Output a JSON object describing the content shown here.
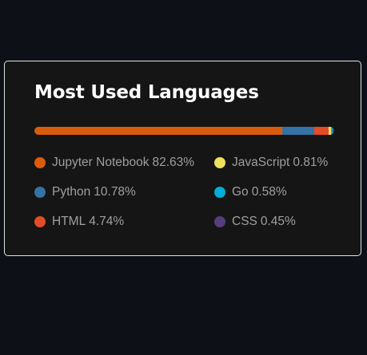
{
  "card": {
    "title": "Most Used Languages",
    "border_color": "#e4e2e2",
    "background": "#151515",
    "title_color": "#ffffff",
    "text_color": "#9f9f9f"
  },
  "page_background": "#0d1117",
  "languages": [
    {
      "name": "Jupyter Notebook",
      "percent_label": "82.63%",
      "percent": 82.63,
      "color": "#DA5B0B"
    },
    {
      "name": "Python",
      "percent_label": "10.78%",
      "percent": 10.78,
      "color": "#3572A5"
    },
    {
      "name": "HTML",
      "percent_label": "4.74%",
      "percent": 4.74,
      "color": "#e34c26"
    },
    {
      "name": "JavaScript",
      "percent_label": "0.81%",
      "percent": 0.81,
      "color": "#f1e05a"
    },
    {
      "name": "Go",
      "percent_label": "0.58%",
      "percent": 0.58,
      "color": "#00ADD8"
    },
    {
      "name": "CSS",
      "percent_label": "0.45%",
      "percent": 0.45,
      "color": "#563d7c"
    }
  ]
}
